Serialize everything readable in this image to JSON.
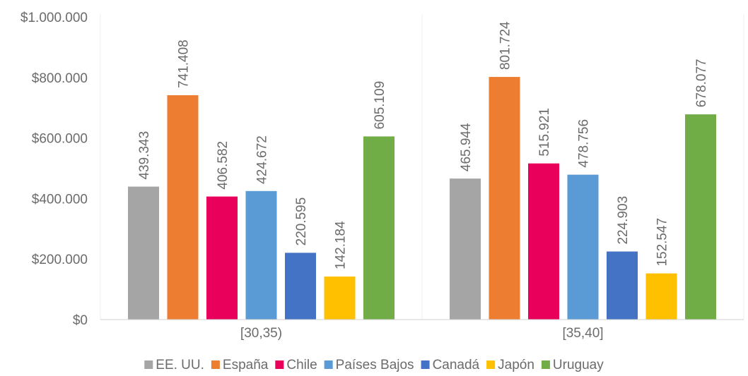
{
  "chart_data": {
    "type": "bar",
    "categories": [
      "[30,35)",
      "[35,40]"
    ],
    "series": [
      {
        "name": "EE. UU.",
        "values": [
          439343,
          465944
        ],
        "labels": [
          "439.343",
          "465.944"
        ],
        "color": "#a5a5a5"
      },
      {
        "name": "España",
        "values": [
          741408,
          801724
        ],
        "labels": [
          "741.408",
          "801.724"
        ],
        "color": "#ed7d31"
      },
      {
        "name": "Chile",
        "values": [
          406582,
          515921
        ],
        "labels": [
          "406.582",
          "515.921"
        ],
        "color": "#e8005a"
      },
      {
        "name": "Países Bajos",
        "values": [
          424672,
          478756
        ],
        "labels": [
          "424.672",
          "478.756"
        ],
        "color": "#5b9bd5"
      },
      {
        "name": "Canadá",
        "values": [
          220595,
          224903
        ],
        "labels": [
          "220.595",
          "224.903"
        ],
        "color": "#4472c4"
      },
      {
        "name": "Japón",
        "values": [
          142184,
          152547
        ],
        "labels": [
          "142.184",
          "152.547"
        ],
        "color": "#ffc000"
      },
      {
        "name": "Uruguay",
        "values": [
          605109,
          678077
        ],
        "labels": [
          "605.109",
          "678.077"
        ],
        "color": "#70ad47"
      }
    ],
    "yticks": [
      0,
      200000,
      400000,
      600000,
      800000,
      1000000
    ],
    "ytick_labels": [
      "$0",
      "$200.000",
      "$400.000",
      "$600.000",
      "$800.000",
      "$1.000.000"
    ],
    "ylim": [
      0,
      1000000
    ],
    "grid": "vertical-category-dividers",
    "legend": "bottom",
    "title": "",
    "xlabel": "",
    "ylabel": ""
  }
}
